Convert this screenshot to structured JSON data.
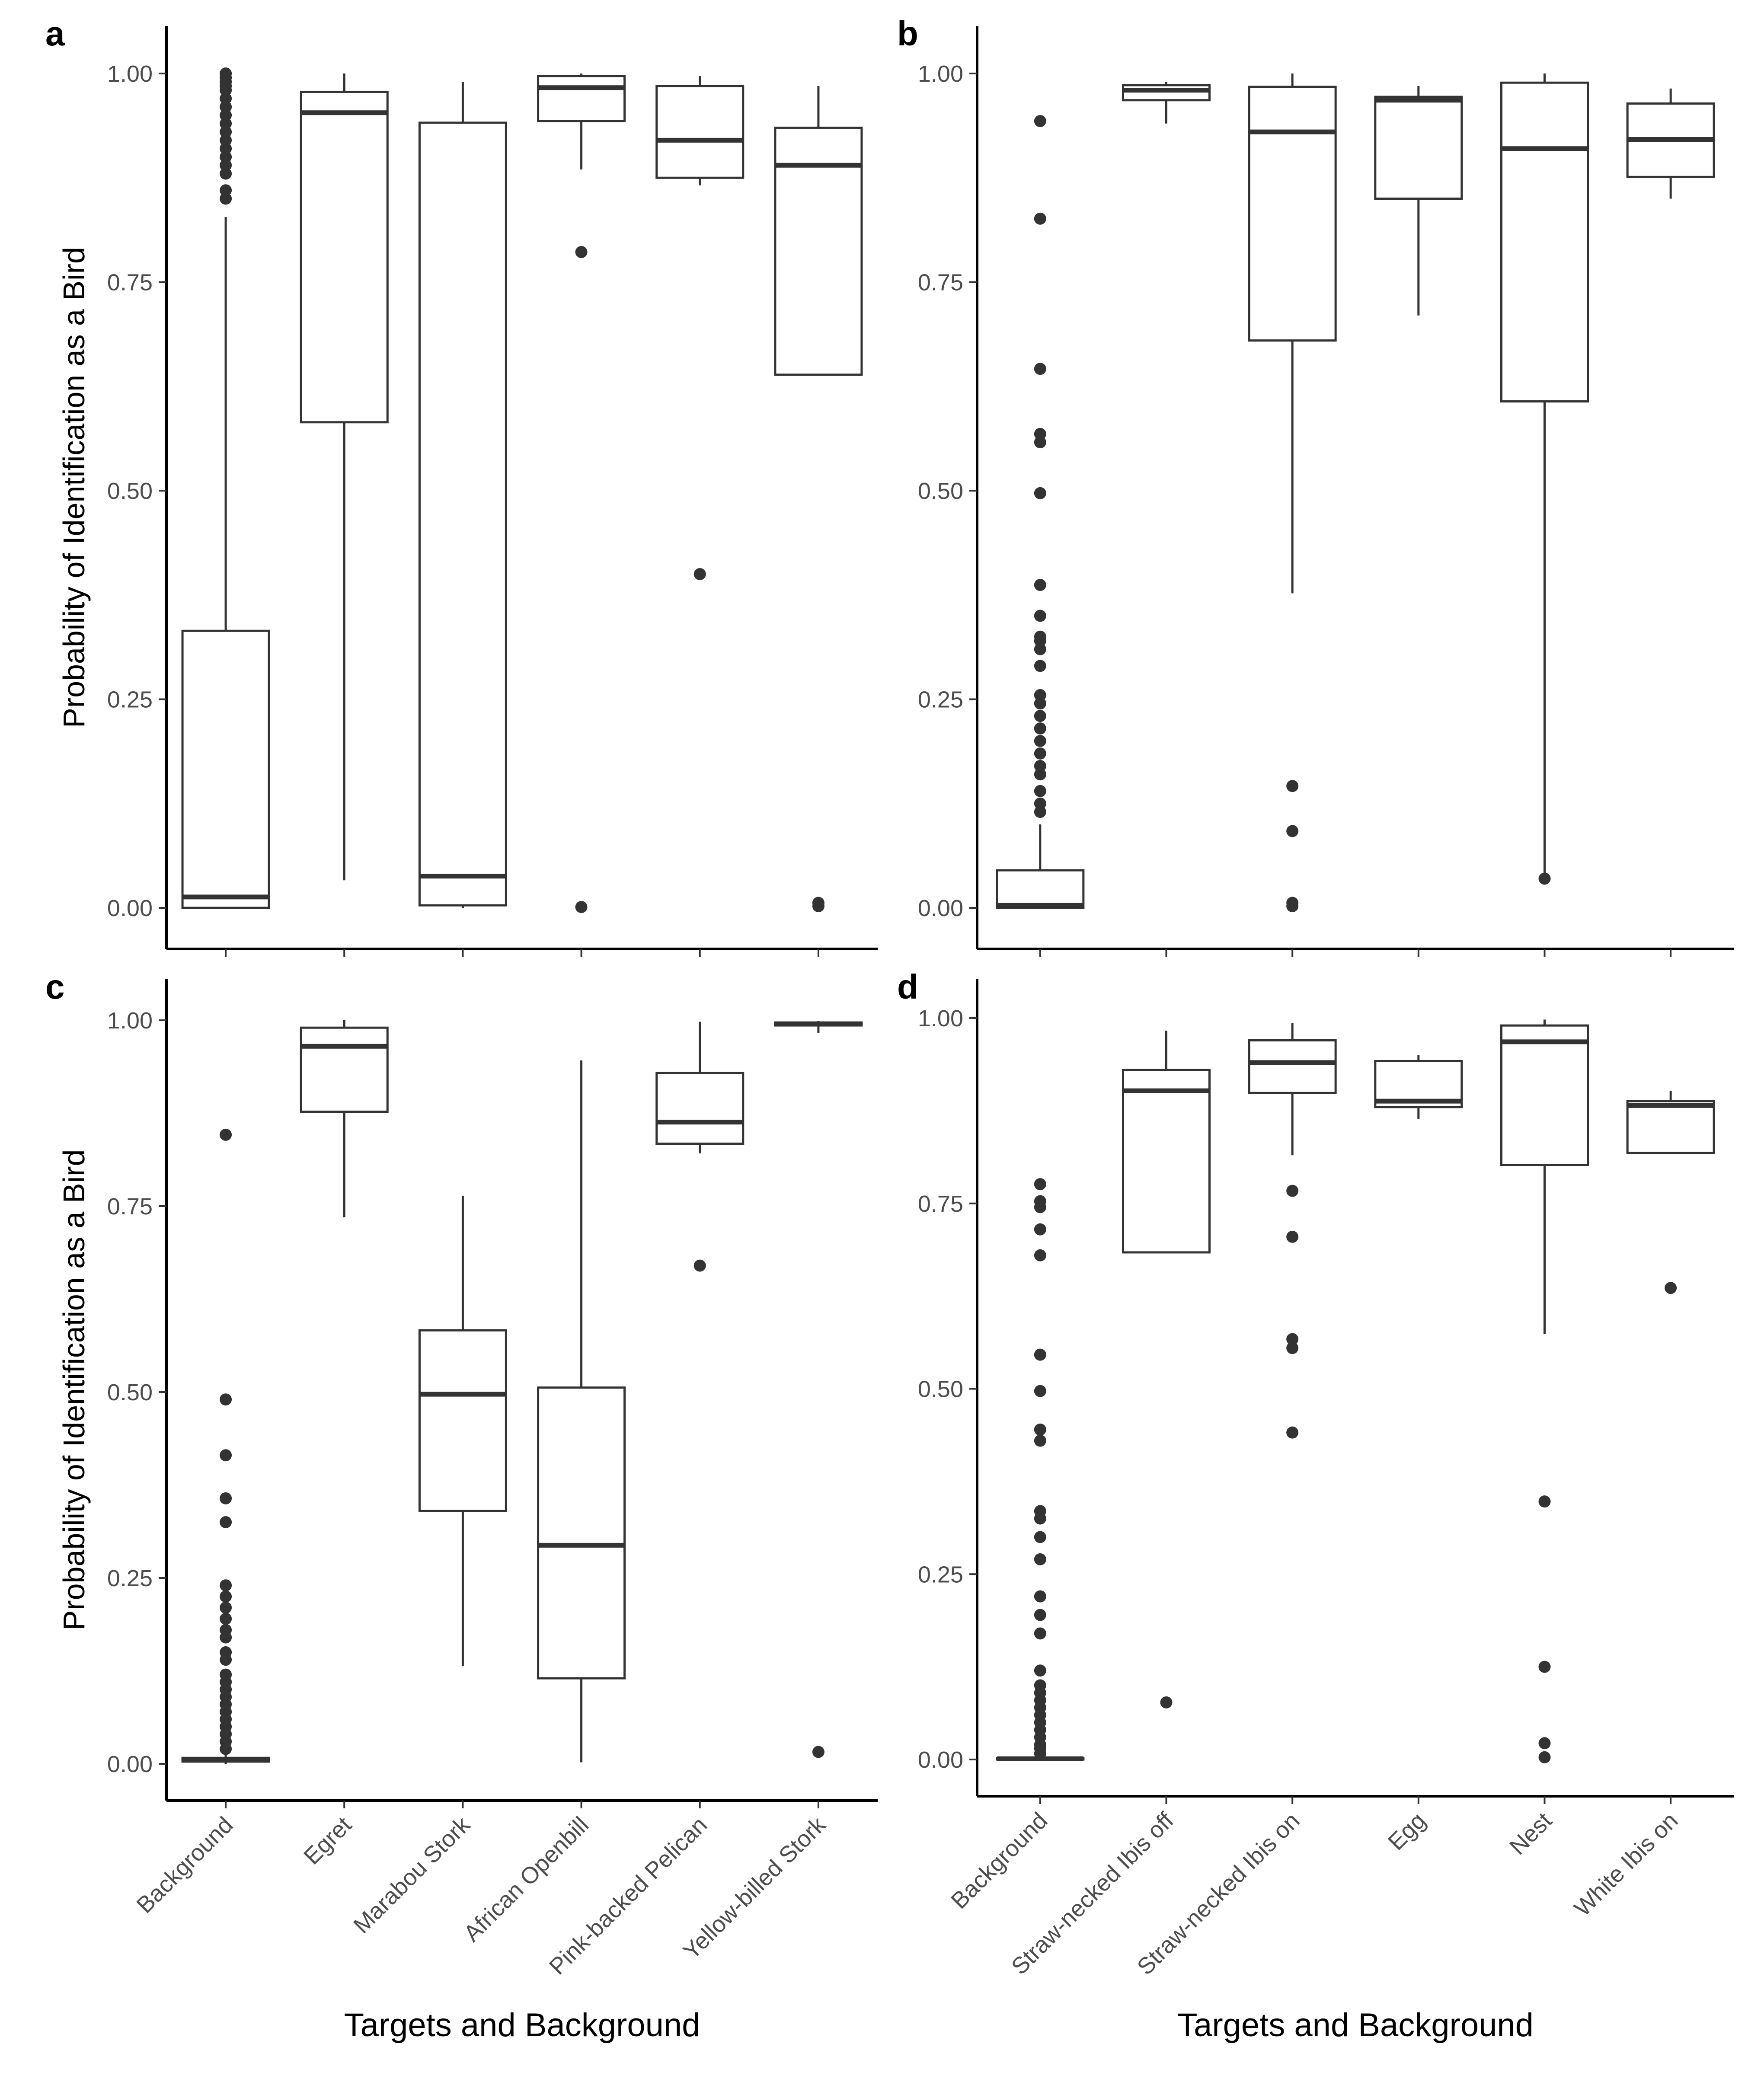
{
  "chart_data": [
    {
      "panel": "a",
      "type": "box",
      "ylabel": "Probability of Identification as a Bird",
      "xlabel": "",
      "ylim": [
        -0.05,
        1.05
      ],
      "yticks": [
        0.0,
        0.25,
        0.5,
        0.75,
        1.0
      ],
      "ytick_labels": [
        "0.00",
        "0.25",
        "0.50",
        "0.75",
        "1.00"
      ],
      "categories": [
        "Background",
        "Egret",
        "Marabou Stork",
        "African Openbill",
        "Pink-backed Pelican",
        "Yellow-billed Stork"
      ],
      "show_xtick_labels": false,
      "boxes": [
        {
          "q1": 0.0,
          "median": 0.013,
          "q3": 0.332,
          "lower": 0.0,
          "upper": 0.828,
          "outliers": [
            0.85,
            0.86,
            0.88,
            0.89,
            0.9,
            0.91,
            0.92,
            0.93,
            0.94,
            0.95,
            0.96,
            0.97,
            0.98,
            0.985,
            0.99,
            0.995,
            1.0
          ]
        },
        {
          "q1": 0.582,
          "median": 0.953,
          "q3": 0.978,
          "lower": 0.033,
          "upper": 1.0,
          "outliers": []
        },
        {
          "q1": 0.003,
          "median": 0.038,
          "q3": 0.941,
          "lower": 0.0,
          "upper": 0.99,
          "outliers": []
        },
        {
          "q1": 0.943,
          "median": 0.983,
          "q3": 0.997,
          "lower": 0.885,
          "upper": 1.0,
          "outliers": [
            0.786,
            0.001
          ]
        },
        {
          "q1": 0.875,
          "median": 0.92,
          "q3": 0.985,
          "lower": 0.866,
          "upper": 0.997,
          "outliers": [
            0.4
          ]
        },
        {
          "q1": 0.639,
          "median": 0.89,
          "q3": 0.935,
          "lower": 0.639,
          "upper": 0.985,
          "outliers": [
            0.006,
            0.002
          ]
        }
      ]
    },
    {
      "panel": "b",
      "type": "box",
      "ylabel": "",
      "xlabel": "",
      "ylim": [
        -0.05,
        1.05
      ],
      "yticks": [
        0.0,
        0.25,
        0.5,
        0.75,
        1.0
      ],
      "ytick_labels": [
        "0.00",
        "0.25",
        "0.50",
        "0.75",
        "1.00"
      ],
      "categories": [
        "Background",
        "Straw-necked Ibis off",
        "Straw-necked Ibis on",
        "Egg",
        "Nest",
        "White Ibis on"
      ],
      "show_xtick_labels": false,
      "boxes": [
        {
          "q1": 0.0,
          "median": 0.003,
          "q3": 0.045,
          "lower": 0.0,
          "upper": 0.1,
          "outliers": [
            0.115,
            0.125,
            0.14,
            0.16,
            0.17,
            0.185,
            0.2,
            0.215,
            0.23,
            0.245,
            0.255,
            0.29,
            0.31,
            0.32,
            0.325,
            0.35,
            0.387,
            0.497,
            0.558,
            0.568,
            0.646,
            0.826,
            0.943
          ]
        },
        {
          "q1": 0.968,
          "median": 0.98,
          "q3": 0.986,
          "lower": 0.94,
          "upper": 0.99,
          "outliers": []
        },
        {
          "q1": 0.68,
          "median": 0.93,
          "q3": 0.984,
          "lower": 0.377,
          "upper": 1.0,
          "outliers": [
            0.146,
            0.092,
            0.006,
            0.002
          ]
        },
        {
          "q1": 0.85,
          "median": 0.968,
          "q3": 0.972,
          "lower": 0.71,
          "upper": 0.985,
          "outliers": []
        },
        {
          "q1": 0.607,
          "median": 0.91,
          "q3": 0.989,
          "lower": 0.037,
          "upper": 1.0,
          "outliers": [
            0.035
          ]
        },
        {
          "q1": 0.876,
          "median": 0.921,
          "q3": 0.964,
          "lower": 0.85,
          "upper": 0.982,
          "outliers": []
        }
      ]
    },
    {
      "panel": "c",
      "type": "box",
      "ylabel": "Probability of Identification as a Bird",
      "xlabel": "Targets and Background",
      "ylim": [
        -0.05,
        1.05
      ],
      "yticks": [
        0.0,
        0.25,
        0.5,
        0.75,
        1.0
      ],
      "ytick_labels": [
        "0.00",
        "0.25",
        "0.50",
        "0.75",
        "1.00"
      ],
      "categories": [
        "Background",
        "Egret",
        "Marabou Stork",
        "African Openbill",
        "Pink-backed Pelican",
        "Yellow-billed Stork"
      ],
      "show_xtick_labels": true,
      "boxes": [
        {
          "q1": 0.003,
          "median": 0.005,
          "q3": 0.008,
          "lower": 0.0,
          "upper": 0.015,
          "outliers": [
            0.02,
            0.03,
            0.04,
            0.05,
            0.06,
            0.07,
            0.08,
            0.09,
            0.1,
            0.11,
            0.12,
            0.14,
            0.15,
            0.17,
            0.18,
            0.195,
            0.21,
            0.225,
            0.24,
            0.325,
            0.357,
            0.415,
            0.49,
            0.846
          ]
        },
        {
          "q1": 0.877,
          "median": 0.965,
          "q3": 0.99,
          "lower": 0.735,
          "upper": 1.0,
          "outliers": []
        },
        {
          "q1": 0.34,
          "median": 0.497,
          "q3": 0.583,
          "lower": 0.132,
          "upper": 0.764,
          "outliers": []
        },
        {
          "q1": 0.115,
          "median": 0.294,
          "q3": 0.506,
          "lower": 0.002,
          "upper": 0.946,
          "outliers": []
        },
        {
          "q1": 0.834,
          "median": 0.863,
          "q3": 0.929,
          "lower": 0.821,
          "upper": 0.998,
          "outliers": [
            0.67
          ]
        },
        {
          "q1": 0.993,
          "median": 0.995,
          "q3": 0.997,
          "lower": 0.983,
          "upper": 0.999,
          "outliers": [
            0.016
          ]
        }
      ]
    },
    {
      "panel": "d",
      "type": "box",
      "ylabel": "",
      "xlabel": "Targets and Background",
      "ylim": [
        -0.05,
        1.05
      ],
      "yticks": [
        0.0,
        0.25,
        0.5,
        0.75,
        1.0
      ],
      "ytick_labels": [
        "0.00",
        "0.25",
        "0.50",
        "0.75",
        "1.00"
      ],
      "categories": [
        "Background",
        "Straw-necked Ibis off",
        "Straw-necked Ibis on",
        "Egg",
        "Nest",
        "White Ibis on"
      ],
      "show_xtick_labels": true,
      "boxes": [
        {
          "q1": 0.0,
          "median": 0.001,
          "q3": 0.002,
          "lower": 0.0,
          "upper": 0.004,
          "outliers": [
            0.008,
            0.015,
            0.02,
            0.03,
            0.04,
            0.05,
            0.06,
            0.07,
            0.08,
            0.09,
            0.1,
            0.12,
            0.17,
            0.195,
            0.22,
            0.27,
            0.3,
            0.325,
            0.335,
            0.43,
            0.445,
            0.497,
            0.546,
            0.68,
            0.715,
            0.745,
            0.753,
            0.776
          ]
        },
        {
          "q1": 0.684,
          "median": 0.902,
          "q3": 0.93,
          "lower": 0.684,
          "upper": 0.983,
          "outliers": [
            0.077
          ]
        },
        {
          "q1": 0.899,
          "median": 0.94,
          "q3": 0.97,
          "lower": 0.815,
          "upper": 0.993,
          "outliers": [
            0.767,
            0.705,
            0.567,
            0.555,
            0.441
          ]
        },
        {
          "q1": 0.88,
          "median": 0.888,
          "q3": 0.942,
          "lower": 0.864,
          "upper": 0.95,
          "outliers": []
        },
        {
          "q1": 0.802,
          "median": 0.968,
          "q3": 0.99,
          "lower": 0.574,
          "upper": 0.998,
          "outliers": [
            0.348,
            0.125,
            0.022,
            0.003
          ]
        },
        {
          "q1": 0.818,
          "median": 0.882,
          "q3": 0.888,
          "lower": 0.818,
          "upper": 0.902,
          "outliers": [
            0.636
          ]
        }
      ]
    }
  ]
}
